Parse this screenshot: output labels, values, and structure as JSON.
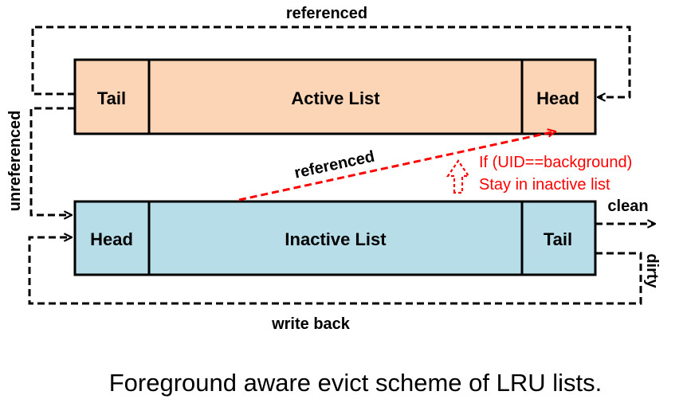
{
  "colors": {
    "active_fill": "#fbd5b5",
    "inactive_fill": "#b7dde8",
    "annotation": "#ff0000",
    "line": "#000000"
  },
  "active_list": {
    "tail_label": "Tail",
    "name": "Active List",
    "head_label": "Head"
  },
  "inactive_list": {
    "head_label": "Head",
    "name": "Inactive List",
    "tail_label": "Tail"
  },
  "edges": {
    "top_referenced": "referenced",
    "promote_referenced": "referenced",
    "unreferenced": "unreferenced",
    "clean": "clean",
    "dirty": "dirty",
    "write_back": "write back"
  },
  "annotation": {
    "line1": "If (UID==background)",
    "line2": "Stay in inactive list",
    "icon": "dashed-up-arrow-icon"
  },
  "caption": "Foreground aware evict scheme of LRU lists."
}
